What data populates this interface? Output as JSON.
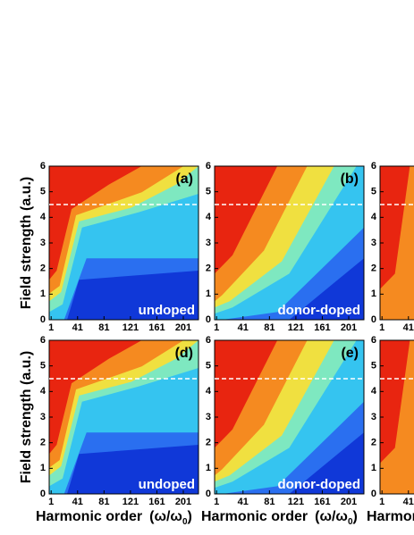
{
  "chart_data": [
    {
      "type": "heatmap",
      "variant": "undoped",
      "label": "(a)",
      "annotation": "undoped",
      "xlim": [
        -2,
        224
      ],
      "ylim": [
        0,
        6
      ],
      "xticks": [
        1,
        41,
        81,
        121,
        161,
        201
      ],
      "yticks": [
        0,
        1,
        2,
        3,
        4,
        5,
        6
      ],
      "reference_line": 4.5,
      "ylabel": "Field strength (a.u.)"
    },
    {
      "type": "heatmap",
      "variant": "doped",
      "label": "(b)",
      "annotation": "donor-doped",
      "xlim": [
        -2,
        224
      ],
      "ylim": [
        0,
        6
      ],
      "xticks": [
        1,
        41,
        81,
        121,
        161,
        201
      ],
      "yticks": [
        0,
        1,
        2,
        3,
        4,
        5,
        6
      ],
      "reference_line": 4.5
    },
    {
      "type": "heatmap",
      "variant": "third",
      "xlim": [
        -2,
        224
      ],
      "ylim": [
        0,
        6
      ],
      "xticks": [
        1,
        41
      ],
      "yticks": [
        0,
        1,
        2,
        3,
        4,
        5,
        6
      ],
      "reference_line": 4.5
    },
    {
      "type": "heatmap",
      "variant": "undoped",
      "label": "(d)",
      "annotation": "undoped",
      "xlim": [
        -2,
        224
      ],
      "ylim": [
        0,
        6
      ],
      "xticks": [
        1,
        41,
        81,
        121,
        161,
        201
      ],
      "yticks": [
        0,
        1,
        2,
        3,
        4,
        5,
        6
      ],
      "reference_line": 4.5,
      "ylabel": "Field strength (a.u.)",
      "xlabel": "Harmonic order",
      "xlabel_unit": "(ω/ω",
      "xlabel_sub": "0",
      "xlabel_close": ")"
    },
    {
      "type": "heatmap",
      "variant": "doped",
      "label": "(e)",
      "annotation": "donor-doped",
      "xlim": [
        -2,
        224
      ],
      "ylim": [
        0,
        6
      ],
      "xticks": [
        1,
        41,
        81,
        121,
        161,
        201
      ],
      "yticks": [
        0,
        1,
        2,
        3,
        4,
        5,
        6
      ],
      "reference_line": 4.5,
      "xlabel": "Harmonic order",
      "xlabel_unit": "(ω/ω",
      "xlabel_sub": "0",
      "xlabel_close": ")"
    },
    {
      "type": "heatmap",
      "variant": "third",
      "xlim": [
        -2,
        224
      ],
      "ylim": [
        0,
        6
      ],
      "xticks": [
        1,
        41
      ],
      "yticks": [
        0,
        1,
        2,
        3,
        4,
        5,
        6
      ],
      "reference_line": 4.5,
      "xlabel": "Harmonic order"
    }
  ]
}
